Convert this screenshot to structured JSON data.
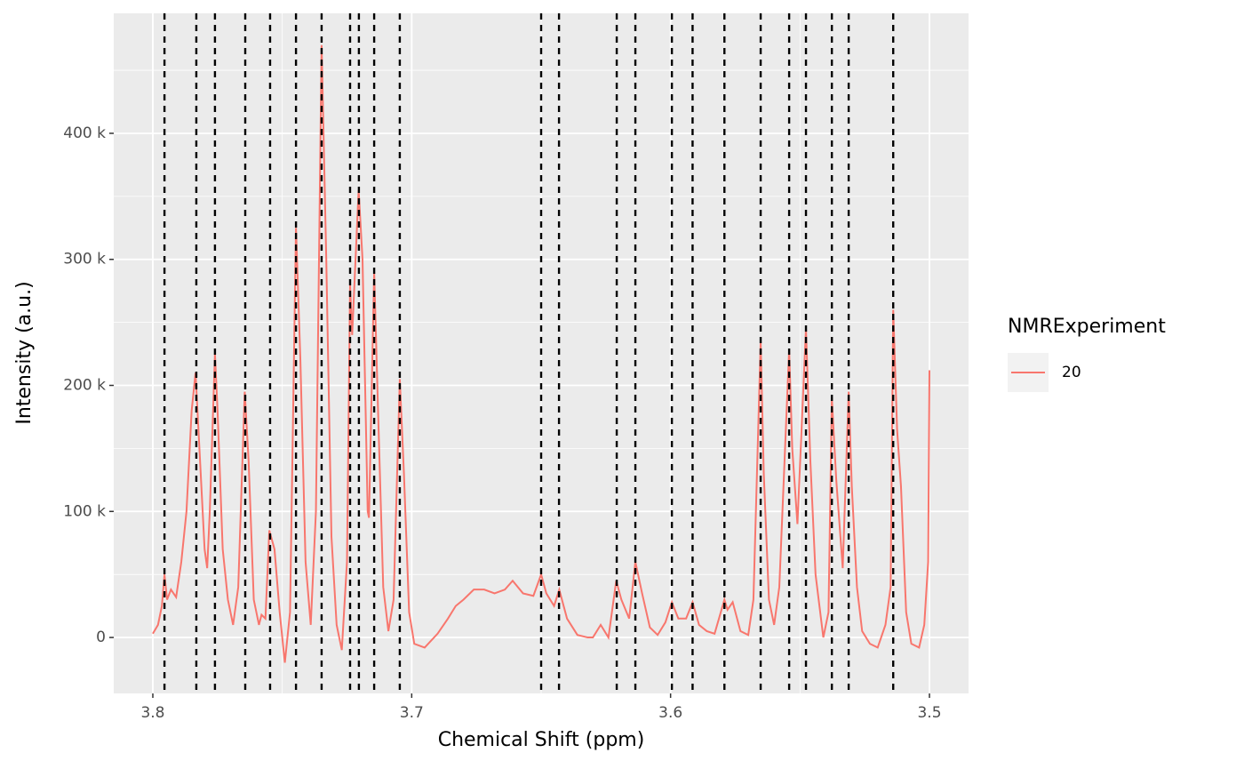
{
  "chart_data": {
    "type": "line",
    "xlabel": "Chemical Shift (ppm)",
    "ylabel": "Intensity (a.u.)",
    "legend_title": "NMRExperiment",
    "legend_position": "right",
    "xlim": [
      3.8151,
      3.4849
    ],
    "xticks": [
      3.8,
      3.7,
      3.6,
      3.5
    ],
    "ylim": [
      -44400,
      495200
    ],
    "yticks": [
      0,
      {
        "value": 100000,
        "label": "100 k"
      },
      {
        "value": 200000,
        "label": "200 k"
      },
      {
        "value": 300000,
        "label": "300 k"
      },
      {
        "value": 400000,
        "label": "400 k"
      }
    ],
    "grid": true,
    "vlines": [
      3.7955,
      3.7832,
      3.776,
      3.7643,
      3.7547,
      3.7447,
      3.7348,
      3.7238,
      3.7204,
      3.7145,
      3.7046,
      3.65,
      3.6431,
      3.6208,
      3.6136,
      3.5995,
      3.5915,
      3.5792,
      3.5652,
      3.5542,
      3.5477,
      3.5377,
      3.5312,
      3.514
    ],
    "vline_color": "#000000",
    "x": [
      3.8,
      3.798,
      3.7965,
      3.7955,
      3.7945,
      3.793,
      3.791,
      3.789,
      3.787,
      3.785,
      3.7835,
      3.782,
      3.78,
      3.779,
      3.778,
      3.776,
      3.775,
      3.773,
      3.771,
      3.769,
      3.767,
      3.7645,
      3.763,
      3.761,
      3.759,
      3.758,
      3.7565,
      3.755,
      3.753,
      3.751,
      3.749,
      3.747,
      3.7447,
      3.743,
      3.741,
      3.739,
      3.737,
      3.7348,
      3.733,
      3.731,
      3.729,
      3.727,
      3.725,
      3.7238,
      3.723,
      3.7205,
      3.719,
      3.717,
      3.7165,
      3.7145,
      3.713,
      3.711,
      3.709,
      3.707,
      3.7046,
      3.703,
      3.701,
      3.699,
      3.695,
      3.69,
      3.686,
      3.683,
      3.68,
      3.676,
      3.672,
      3.668,
      3.664,
      3.661,
      3.657,
      3.653,
      3.65,
      3.648,
      3.645,
      3.643,
      3.64,
      3.636,
      3.632,
      3.63,
      3.627,
      3.624,
      3.621,
      3.619,
      3.616,
      3.6136,
      3.611,
      3.608,
      3.605,
      3.602,
      3.5995,
      3.597,
      3.594,
      3.5915,
      3.589,
      3.586,
      3.583,
      3.5792,
      3.578,
      3.576,
      3.573,
      3.57,
      3.568,
      3.5652,
      3.564,
      3.562,
      3.56,
      3.558,
      3.5542,
      3.553,
      3.551,
      3.5477,
      3.546,
      3.544,
      3.541,
      3.539,
      3.5377,
      3.536,
      3.5335,
      3.5312,
      3.53,
      3.528,
      3.526,
      3.523,
      3.52,
      3.517,
      3.515,
      3.514,
      3.5125,
      3.511,
      3.509,
      3.507,
      3.504,
      3.502,
      3.5005,
      3.5
    ],
    "series": [
      {
        "name": "20",
        "color": "#F8766D",
        "values": [
          3000,
          10000,
          25000,
          50000,
          30000,
          38000,
          32000,
          60000,
          100000,
          180000,
          210000,
          150000,
          70000,
          55000,
          100000,
          225000,
          180000,
          70000,
          30000,
          10000,
          40000,
          195000,
          140000,
          30000,
          10000,
          18000,
          15000,
          85000,
          70000,
          20000,
          -20000,
          20000,
          325000,
          220000,
          60000,
          10000,
          100000,
          470000,
          300000,
          80000,
          10000,
          -10000,
          60000,
          280000,
          240000,
          355000,
          300000,
          100000,
          95000,
          290000,
          180000,
          40000,
          5000,
          30000,
          205000,
          130000,
          20000,
          -5000,
          -8000,
          3000,
          15000,
          25000,
          30000,
          38000,
          38000,
          35000,
          38000,
          45000,
          35000,
          33000,
          50000,
          35000,
          25000,
          38000,
          15000,
          2000,
          0,
          0,
          10000,
          0,
          45000,
          30000,
          15000,
          60000,
          35000,
          8000,
          2000,
          12000,
          28000,
          15000,
          15000,
          28000,
          10000,
          5000,
          3000,
          30000,
          22000,
          28000,
          5000,
          2000,
          30000,
          235000,
          130000,
          30000,
          10000,
          40000,
          228000,
          150000,
          90000,
          245000,
          140000,
          50000,
          0,
          20000,
          190000,
          125000,
          55000,
          195000,
          120000,
          40000,
          5000,
          -5000,
          -8000,
          10000,
          40000,
          260000,
          165000,
          120000,
          20000,
          -5000,
          -8000,
          10000,
          60000,
          212000
        ]
      }
    ]
  }
}
